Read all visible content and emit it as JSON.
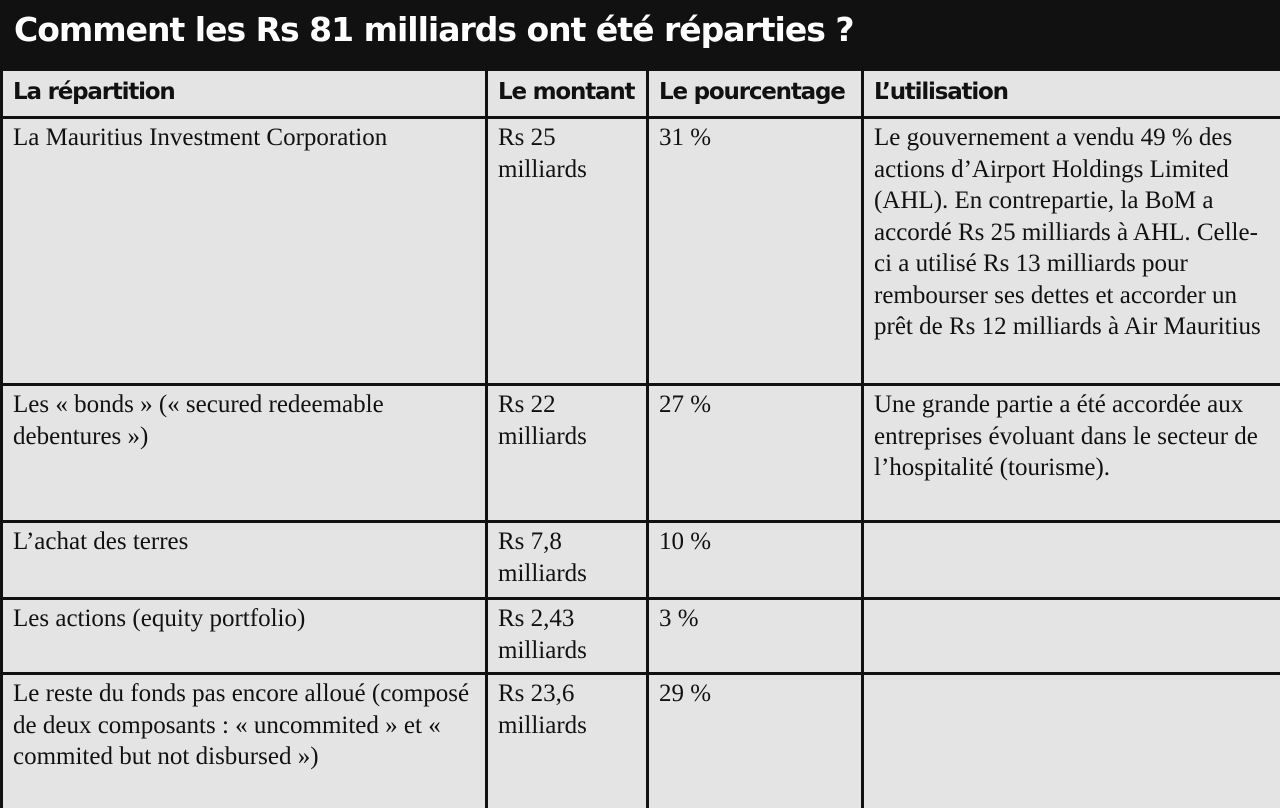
{
  "header": {
    "title": "Comment les Rs 81 milliards ont été réparties ?"
  },
  "table": {
    "columns": [
      "La répartition",
      "Le montant",
      "Le pourcentage",
      "L’utilisation"
    ],
    "rows": [
      [
        "La Mauritius Investment Corporation",
        "Rs 25 milliards",
        "31 %",
        "Le gouvernement a vendu 49 % des actions d’Airport Holdings Limited (AHL). En contrepartie, la BoM a accordé Rs 25 milliards à AHL. Celle-ci a utilisé Rs 13 milliards pour rembourser ses dettes et accorder un prêt de Rs 12 milliards à Air Mauritius"
      ],
      [
        "Les « bonds » (« secured redeemable debentures »)",
        "Rs 22 milliards",
        "27 %",
        "Une grande partie a été accordée aux entreprises évoluant dans le secteur de l’hospitalité (tourisme)."
      ],
      [
        "L’achat des terres",
        "Rs 7,8 milliards",
        "10 %"
      ],
      [
        "Les actions (equity portfolio)",
        "Rs 2,43 milliards",
        "3 %"
      ],
      [
        "Le reste du fonds pas encore alloué (composé de deux composants : « uncommited » et « commited but not disbursed »)",
        "Rs 23,6 milliards",
        "29 %"
      ]
    ]
  }
}
